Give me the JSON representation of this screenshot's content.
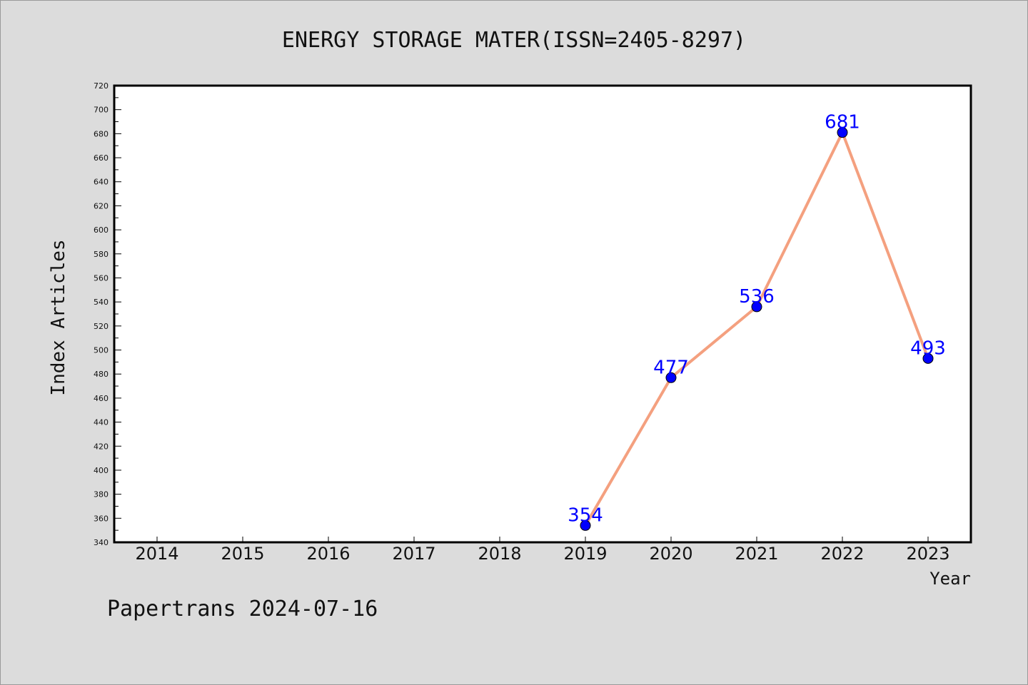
{
  "chart_data": {
    "type": "line",
    "title": "ENERGY STORAGE MATER(ISSN=2405-8297)",
    "xlabel": "Year",
    "ylabel": "Index Articles",
    "categories": [
      "2014",
      "2015",
      "2016",
      "2017",
      "2018",
      "2019",
      "2020",
      "2021",
      "2022",
      "2023"
    ],
    "series": [
      {
        "points": [
          {
            "x": "2019",
            "y": 354
          },
          {
            "x": "2020",
            "y": 477
          },
          {
            "x": "2021",
            "y": 536
          },
          {
            "x": "2022",
            "y": 681
          },
          {
            "x": "2023",
            "y": 493
          }
        ]
      }
    ],
    "ylim": [
      340,
      720
    ],
    "ytick_step": 20,
    "ytick_minor_step": 10,
    "grid": false,
    "colors": {
      "line": "#f4a07f",
      "marker": "#0000ff",
      "data_label": "#0000ff",
      "plot_background": "#ffffff",
      "figure_background": "#dcdcdc"
    }
  },
  "footer": {
    "text": "Papertrans 2024-07-16"
  }
}
